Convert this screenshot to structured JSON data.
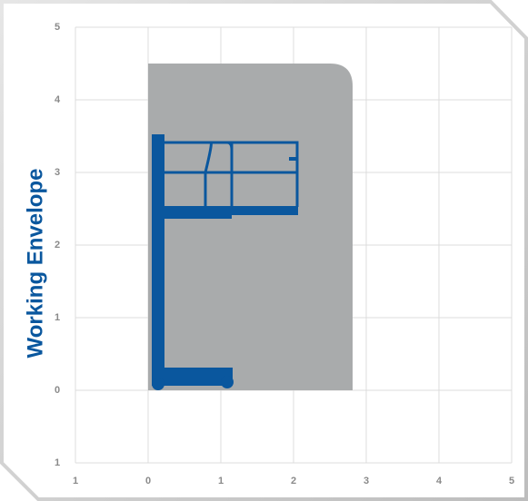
{
  "title": "Working Envelope",
  "x_labels": [
    "1",
    "0",
    "1",
    "2",
    "3",
    "4",
    "5"
  ],
  "y_labels": [
    "5",
    "4",
    "3",
    "2",
    "1",
    "0",
    "1"
  ]
}
